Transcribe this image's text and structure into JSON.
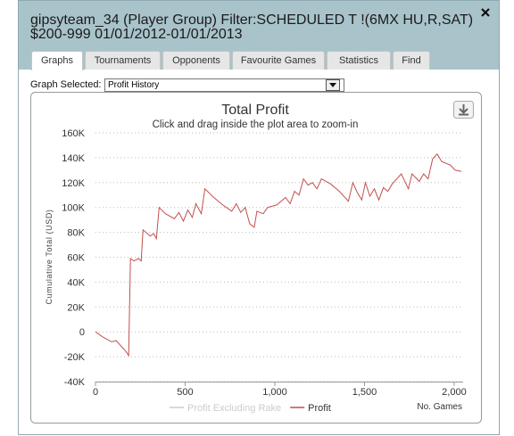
{
  "window": {
    "title_lines": [
      "gipsyteam_34 (Player Group) Filter:SCHEDULED T !(6MX HU,R,SAT)",
      "$200-999 01/01/2012-01/01/2013"
    ],
    "tabs": [
      "Graphs",
      "Tournaments",
      "Opponents",
      "Favourite Games",
      "Statistics",
      "Find"
    ],
    "graph_selected_label": "Graph Selected:",
    "graph_selected_value": "Profit History"
  },
  "chart_data": {
    "type": "line",
    "title": "Total Profit",
    "subtitle": "Click and drag inside the plot area to zoom-in",
    "x_label": "No. Games",
    "y_label": "Cumulative Total (USD)",
    "x": [
      0,
      40,
      90,
      115,
      165,
      185,
      195,
      215,
      240,
      255,
      265,
      305,
      325,
      340,
      355,
      390,
      440,
      465,
      490,
      515,
      540,
      560,
      590,
      610,
      660,
      710,
      760,
      785,
      810,
      835,
      860,
      885,
      900,
      935,
      960,
      1010,
      1060,
      1085,
      1110,
      1135,
      1160,
      1185,
      1210,
      1235,
      1260,
      1310,
      1360,
      1410,
      1435,
      1460,
      1485,
      1505,
      1530,
      1555,
      1580,
      1605,
      1630,
      1655,
      1705,
      1745,
      1765,
      1805,
      1830,
      1855,
      1880,
      1905,
      1930,
      1980,
      2005,
      2040
    ],
    "series": [
      {
        "name": "Profit Excluding Rake",
        "color": "#cccccc",
        "visible": false
      },
      {
        "name": "Profit",
        "color": "#c0504d",
        "values": [
          0,
          -4000,
          -8000,
          -7000,
          -15000,
          -19000,
          59000,
          57000,
          59000,
          57000,
          82000,
          77000,
          79000,
          75000,
          100000,
          95000,
          91000,
          96000,
          89000,
          98000,
          92000,
          103000,
          95000,
          115000,
          108000,
          102000,
          97000,
          103000,
          96000,
          100000,
          87000,
          84000,
          97000,
          95000,
          100000,
          102000,
          108000,
          103000,
          113000,
          110000,
          123000,
          118000,
          120000,
          115000,
          123000,
          119000,
          113000,
          105000,
          120000,
          112000,
          106000,
          120000,
          109000,
          115000,
          106000,
          116000,
          113000,
          119000,
          127000,
          115000,
          127000,
          121000,
          127000,
          123000,
          139000,
          143000,
          137000,
          134000,
          130000,
          129000
        ]
      }
    ],
    "xlim": [
      0,
      2050
    ],
    "ylim": [
      -40000,
      160000
    ],
    "xticks": [
      0,
      500,
      {
        "value": 1000,
        "label": "1,000"
      },
      {
        "value": 1500,
        "label": "1,500"
      },
      {
        "value": 2000,
        "label": "2,000"
      }
    ],
    "yticks": [
      {
        "value": -40000,
        "label": "-40K"
      },
      {
        "value": -20000,
        "label": "-20K"
      },
      0,
      {
        "value": 20000,
        "label": "20K"
      },
      {
        "value": 40000,
        "label": "40K"
      },
      {
        "value": 60000,
        "label": "60K"
      },
      {
        "value": 80000,
        "label": "80K"
      },
      {
        "value": 100000,
        "label": "100K"
      },
      {
        "value": 120000,
        "label": "120K"
      },
      {
        "value": 140000,
        "label": "140K"
      },
      {
        "value": 160000,
        "label": "160K"
      }
    ],
    "grid": true
  }
}
